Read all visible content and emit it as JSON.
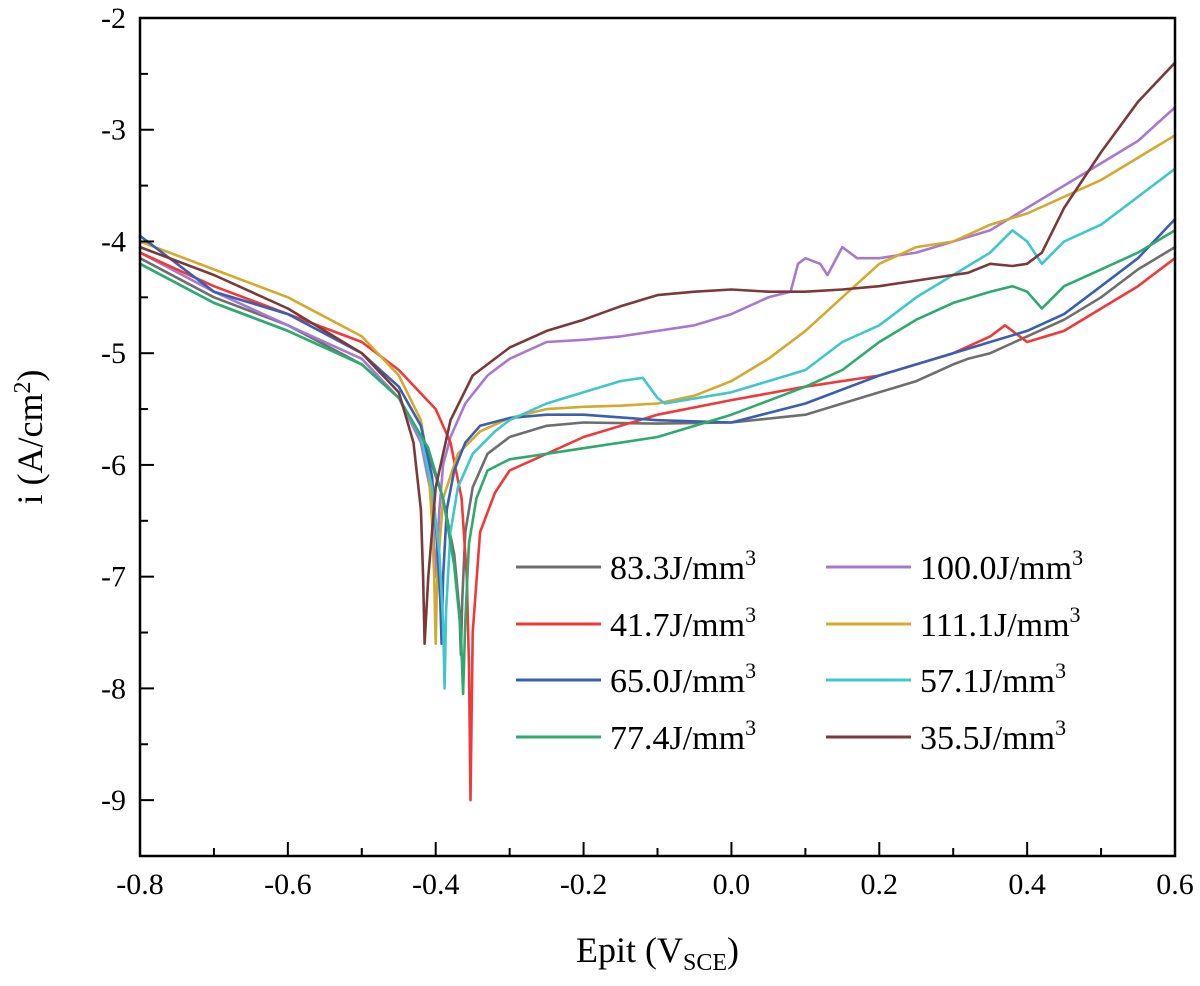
{
  "chart_data": {
    "type": "line",
    "xlabel": {
      "main": "Epit (V",
      "sub": "SCE",
      "end": ")"
    },
    "ylabel": {
      "main": "i (A/cm",
      "sup": "2",
      "end": ")"
    },
    "xlim": [
      -0.8,
      0.6
    ],
    "ylim": [
      -9.5,
      -2
    ],
    "xticks": [
      -0.8,
      -0.6,
      -0.4,
      -0.2,
      0.0,
      0.2,
      0.4,
      0.6
    ],
    "xtick_labels": [
      "-0.8",
      "-0.6",
      "-0.4",
      "-0.2",
      "0.0",
      "0.2",
      "0.4",
      "0.6"
    ],
    "yticks": [
      -9,
      -8,
      -7,
      -6,
      -5,
      -4,
      -3,
      -2
    ],
    "ytick_labels": [
      "-9",
      "-8",
      "-7",
      "-6",
      "-5",
      "-4",
      "-3",
      "-2"
    ],
    "legend_position": "lower-right",
    "series": [
      {
        "name": "83.3J/mm",
        "sup": "3",
        "color": "#6e6e6e",
        "x": [
          -0.8,
          -0.7,
          -0.6,
          -0.5,
          -0.45,
          -0.41,
          -0.39,
          -0.375,
          -0.368,
          -0.366,
          -0.364,
          -0.36,
          -0.35,
          -0.33,
          -0.3,
          -0.25,
          -0.2,
          -0.1,
          0.0,
          0.1,
          0.15,
          0.2,
          0.25,
          0.3,
          0.32,
          0.35,
          0.4,
          0.45,
          0.5,
          0.55,
          0.6
        ],
        "y": [
          -4.15,
          -4.5,
          -4.75,
          -5.1,
          -5.4,
          -5.9,
          -6.3,
          -6.8,
          -7.3,
          -7.7,
          -7.2,
          -6.6,
          -6.2,
          -5.9,
          -5.75,
          -5.65,
          -5.62,
          -5.63,
          -5.62,
          -5.55,
          -5.45,
          -5.35,
          -5.25,
          -5.1,
          -5.05,
          -5.0,
          -4.85,
          -4.7,
          -4.5,
          -4.25,
          -4.05
        ]
      },
      {
        "name": "100.0J/mm",
        "sup": "3",
        "color": "#a877d0",
        "x": [
          -0.8,
          -0.7,
          -0.6,
          -0.5,
          -0.45,
          -0.42,
          -0.405,
          -0.4,
          -0.395,
          -0.39,
          -0.38,
          -0.36,
          -0.33,
          -0.3,
          -0.25,
          -0.2,
          -0.15,
          -0.1,
          -0.05,
          0.0,
          0.05,
          0.08,
          0.09,
          0.1,
          0.12,
          0.13,
          0.15,
          0.17,
          0.2,
          0.25,
          0.3,
          0.35,
          0.4,
          0.45,
          0.5,
          0.55,
          0.6
        ],
        "y": [
          -4.1,
          -4.45,
          -4.75,
          -5.05,
          -5.4,
          -5.8,
          -6.3,
          -7.0,
          -6.4,
          -6.0,
          -5.75,
          -5.45,
          -5.2,
          -5.05,
          -4.9,
          -4.88,
          -4.85,
          -4.8,
          -4.75,
          -4.65,
          -4.5,
          -4.45,
          -4.2,
          -4.15,
          -4.2,
          -4.3,
          -4.05,
          -4.15,
          -4.15,
          -4.1,
          -4.0,
          -3.9,
          -3.7,
          -3.5,
          -3.3,
          -3.1,
          -2.8
        ]
      },
      {
        "name": "41.7J/mm",
        "sup": "3",
        "color": "#ee3a3a",
        "x": [
          -0.8,
          -0.7,
          -0.6,
          -0.5,
          -0.45,
          -0.4,
          -0.38,
          -0.365,
          -0.358,
          -0.355,
          -0.353,
          -0.35,
          -0.34,
          -0.32,
          -0.3,
          -0.25,
          -0.2,
          -0.1,
          0.0,
          0.1,
          0.2,
          0.3,
          0.35,
          0.37,
          0.4,
          0.45,
          0.5,
          0.55,
          0.6
        ],
        "y": [
          -4.1,
          -4.4,
          -4.65,
          -4.9,
          -5.15,
          -5.5,
          -5.8,
          -6.3,
          -7.0,
          -7.8,
          -9.0,
          -7.5,
          -6.6,
          -6.25,
          -6.05,
          -5.9,
          -5.75,
          -5.55,
          -5.42,
          -5.3,
          -5.2,
          -5.0,
          -4.85,
          -4.75,
          -4.9,
          -4.8,
          -4.6,
          -4.4,
          -4.15
        ]
      },
      {
        "name": "111.1J/mm",
        "sup": "3",
        "color": "#d4a92e",
        "x": [
          -0.8,
          -0.7,
          -0.6,
          -0.5,
          -0.45,
          -0.42,
          -0.41,
          -0.405,
          -0.402,
          -0.4,
          -0.398,
          -0.39,
          -0.37,
          -0.34,
          -0.3,
          -0.25,
          -0.2,
          -0.15,
          -0.1,
          -0.05,
          0.0,
          0.05,
          0.1,
          0.15,
          0.2,
          0.25,
          0.3,
          0.35,
          0.4,
          0.45,
          0.5,
          0.55,
          0.6
        ],
        "y": [
          -4.0,
          -4.25,
          -4.5,
          -4.85,
          -5.2,
          -5.6,
          -6.0,
          -6.5,
          -7.0,
          -7.6,
          -7.0,
          -6.3,
          -5.9,
          -5.7,
          -5.58,
          -5.5,
          -5.48,
          -5.47,
          -5.45,
          -5.38,
          -5.25,
          -5.05,
          -4.8,
          -4.5,
          -4.2,
          -4.05,
          -4.0,
          -3.85,
          -3.75,
          -3.6,
          -3.45,
          -3.25,
          -3.05
        ]
      },
      {
        "name": "65.0J/mm",
        "sup": "3",
        "color": "#3a5fb0",
        "x": [
          -0.8,
          -0.7,
          -0.6,
          -0.5,
          -0.45,
          -0.42,
          -0.405,
          -0.398,
          -0.394,
          -0.392,
          -0.39,
          -0.385,
          -0.375,
          -0.36,
          -0.34,
          -0.3,
          -0.25,
          -0.2,
          -0.1,
          0.0,
          0.1,
          0.2,
          0.3,
          0.35,
          0.4,
          0.45,
          0.5,
          0.55,
          0.6
        ],
        "y": [
          -3.95,
          -4.45,
          -4.65,
          -5.0,
          -5.3,
          -5.65,
          -6.1,
          -6.7,
          -7.2,
          -7.6,
          -7.0,
          -6.4,
          -6.05,
          -5.8,
          -5.65,
          -5.58,
          -5.55,
          -5.55,
          -5.6,
          -5.62,
          -5.45,
          -5.2,
          -5.0,
          -4.9,
          -4.8,
          -4.65,
          -4.4,
          -4.15,
          -3.8
        ]
      },
      {
        "name": "57.1J/mm",
        "sup": "3",
        "color": "#3fc6cf",
        "x": [
          -0.8,
          -0.7,
          -0.6,
          -0.5,
          -0.45,
          -0.42,
          -0.405,
          -0.395,
          -0.39,
          -0.388,
          -0.386,
          -0.38,
          -0.37,
          -0.35,
          -0.32,
          -0.3,
          -0.25,
          -0.2,
          -0.15,
          -0.12,
          -0.1,
          -0.09,
          0.0,
          0.1,
          0.15,
          0.2,
          0.25,
          0.3,
          0.35,
          0.38,
          0.4,
          0.42,
          0.45,
          0.5,
          0.55,
          0.6
        ],
        "y": [
          -4.2,
          -4.55,
          -4.8,
          -5.1,
          -5.4,
          -5.75,
          -6.2,
          -6.8,
          -7.4,
          -8.0,
          -7.3,
          -6.6,
          -6.2,
          -5.9,
          -5.7,
          -5.6,
          -5.45,
          -5.35,
          -5.25,
          -5.22,
          -5.4,
          -5.45,
          -5.35,
          -5.15,
          -4.9,
          -4.75,
          -4.5,
          -4.3,
          -4.1,
          -3.9,
          -4.0,
          -4.2,
          -4.0,
          -3.85,
          -3.6,
          -3.35
        ]
      },
      {
        "name": "77.4J/mm",
        "sup": "3",
        "color": "#2faa6e",
        "x": [
          -0.8,
          -0.7,
          -0.6,
          -0.5,
          -0.45,
          -0.41,
          -0.39,
          -0.375,
          -0.366,
          -0.363,
          -0.36,
          -0.355,
          -0.345,
          -0.33,
          -0.3,
          -0.25,
          -0.2,
          -0.1,
          0.0,
          0.1,
          0.15,
          0.2,
          0.25,
          0.3,
          0.35,
          0.38,
          0.4,
          0.42,
          0.45,
          0.5,
          0.55,
          0.6
        ],
        "y": [
          -4.2,
          -4.55,
          -4.8,
          -5.1,
          -5.4,
          -5.85,
          -6.3,
          -6.9,
          -7.5,
          -8.05,
          -7.4,
          -6.7,
          -6.3,
          -6.05,
          -5.95,
          -5.9,
          -5.85,
          -5.75,
          -5.55,
          -5.3,
          -5.15,
          -4.9,
          -4.7,
          -4.55,
          -4.45,
          -4.4,
          -4.45,
          -4.6,
          -4.4,
          -4.25,
          -4.1,
          -3.9
        ]
      },
      {
        "name": "35.5J/mm",
        "sup": "3",
        "color": "#7a3a3a",
        "x": [
          -0.8,
          -0.7,
          -0.6,
          -0.5,
          -0.45,
          -0.43,
          -0.42,
          -0.417,
          -0.415,
          -0.41,
          -0.4,
          -0.38,
          -0.35,
          -0.3,
          -0.25,
          -0.2,
          -0.15,
          -0.1,
          -0.05,
          0.0,
          0.05,
          0.1,
          0.15,
          0.2,
          0.25,
          0.3,
          0.32,
          0.35,
          0.38,
          0.4,
          0.42,
          0.45,
          0.5,
          0.55,
          0.6
        ],
        "y": [
          -4.05,
          -4.3,
          -4.6,
          -5.0,
          -5.35,
          -5.8,
          -6.4,
          -7.0,
          -7.6,
          -7.0,
          -6.2,
          -5.6,
          -5.2,
          -4.95,
          -4.8,
          -4.7,
          -4.58,
          -4.48,
          -4.45,
          -4.43,
          -4.45,
          -4.45,
          -4.43,
          -4.4,
          -4.35,
          -4.3,
          -4.28,
          -4.2,
          -4.22,
          -4.2,
          -4.1,
          -3.7,
          -3.2,
          -2.75,
          -2.4
        ]
      }
    ]
  }
}
